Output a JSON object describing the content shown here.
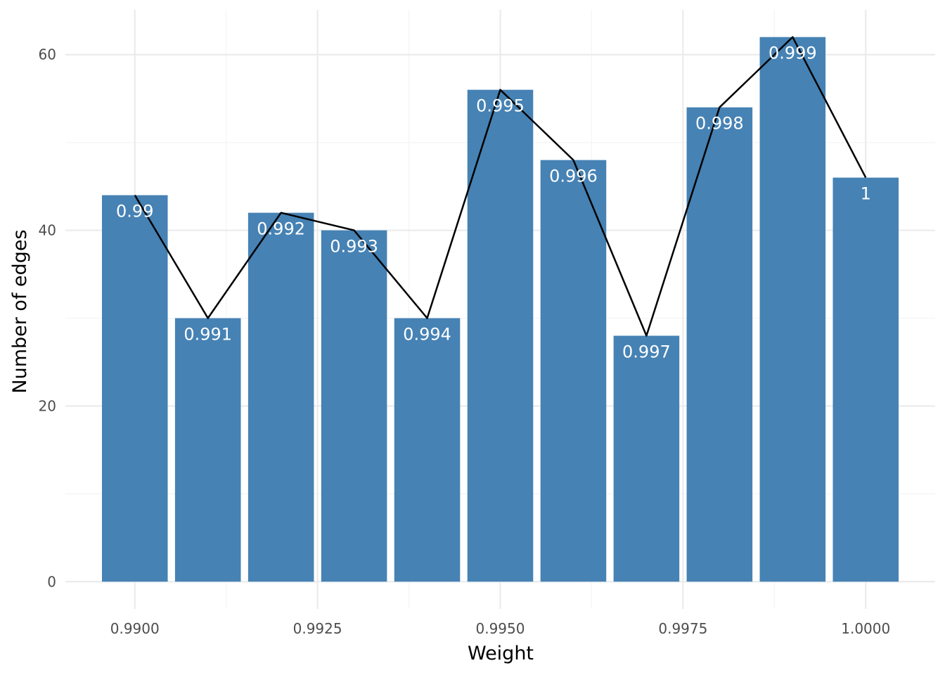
{
  "chart_data": {
    "type": "bar",
    "title": "",
    "xlabel": "Weight",
    "ylabel": "Number of edges",
    "x": [
      0.99,
      0.991,
      0.992,
      0.993,
      0.994,
      0.995,
      0.996,
      0.997,
      0.998,
      0.999,
      1.0
    ],
    "values": [
      44,
      30,
      42,
      40,
      30,
      56,
      48,
      28,
      54,
      62,
      46
    ],
    "bar_labels": [
      "0.99",
      "0.991",
      "0.992",
      "0.993",
      "0.994",
      "0.995",
      "0.996",
      "0.997",
      "0.998",
      "0.999",
      "1"
    ],
    "overlay_line": {
      "type": "line",
      "values": [
        44,
        30,
        42,
        40,
        30,
        56,
        48,
        28,
        54,
        62,
        46
      ],
      "color": "#000000"
    },
    "xlim": [
      0.98905,
      1.00095
    ],
    "ylim": [
      -3.1,
      65.1
    ],
    "x_ticks": [
      0.99,
      0.9925,
      0.995,
      0.9975,
      1.0
    ],
    "x_tick_labels": [
      "0.9900",
      "0.9925",
      "0.9950",
      "0.9975",
      "1.0000"
    ],
    "y_ticks": [
      0,
      20,
      40,
      60
    ],
    "y_tick_labels": [
      "0",
      "20",
      "40",
      "60"
    ],
    "bar_color": "#4682b4",
    "grid": true,
    "legend": "none"
  }
}
